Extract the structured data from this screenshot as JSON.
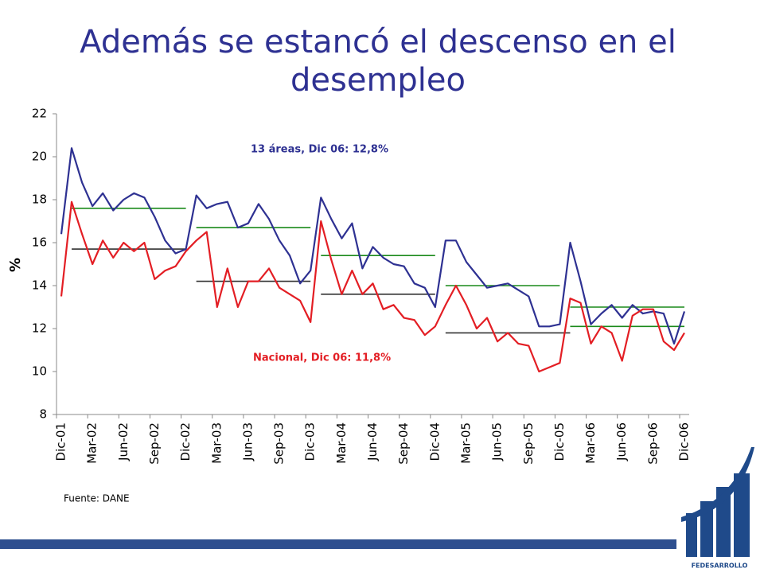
{
  "chart_data": {
    "type": "line",
    "title": "Además se estancó el descenso en el desempleo",
    "y_label": "%",
    "source": "Fuente: DANE",
    "logo": "FEDESARROLLO",
    "categories": [
      "Dic-01",
      null,
      null,
      "Mar-02",
      null,
      null,
      "Jun-02",
      null,
      null,
      "Sep-02",
      null,
      null,
      "Dic-02",
      null,
      null,
      "Mar-03",
      null,
      null,
      "Jun-03",
      null,
      null,
      "Sep-03",
      null,
      null,
      "Dic-03",
      null,
      null,
      "Mar-04",
      null,
      null,
      "Jun-04",
      null,
      null,
      "Sep-04",
      null,
      null,
      "Dic-04",
      null,
      null,
      "Mar-05",
      null,
      null,
      "Jun-05",
      null,
      null,
      "Sep-05",
      null,
      null,
      "Dic-05",
      null,
      null,
      "Mar-06",
      null,
      null,
      "Jun-06",
      null,
      null,
      "Sep-06",
      null,
      null,
      "Dic-06"
    ],
    "series": [
      {
        "name": "13 áreas",
        "color": "#2e3192",
        "values": [
          16.4,
          20.4,
          18.8,
          17.7,
          18.3,
          17.5,
          18.0,
          18.3,
          18.1,
          17.2,
          16.1,
          15.5,
          15.7,
          18.2,
          17.6,
          17.8,
          17.9,
          16.7,
          16.9,
          17.8,
          17.1,
          16.1,
          15.4,
          14.1,
          14.7,
          18.1,
          17.1,
          16.2,
          16.9,
          14.8,
          15.8,
          15.3,
          15.0,
          14.9,
          14.1,
          13.9,
          13.0,
          16.1,
          16.1,
          15.1,
          14.5,
          13.9,
          14.0,
          14.1,
          13.8,
          13.5,
          12.1,
          12.1,
          12.2,
          16.0,
          14.2,
          12.2,
          12.7,
          13.1,
          12.5,
          13.1,
          12.7,
          12.8,
          12.7,
          11.3,
          12.8
        ]
      },
      {
        "name": "Nacional",
        "color": "#e31e24",
        "values": [
          13.5,
          17.9,
          16.4,
          15.0,
          16.1,
          15.3,
          16.0,
          15.6,
          16.0,
          14.3,
          14.7,
          14.9,
          15.6,
          16.1,
          16.5,
          13.0,
          14.8,
          13.0,
          14.2,
          14.2,
          14.8,
          13.9,
          13.6,
          13.3,
          12.3,
          17.0,
          15.2,
          13.6,
          14.7,
          13.6,
          14.1,
          12.9,
          13.1,
          12.5,
          12.4,
          11.7,
          12.1,
          13.1,
          14.0,
          13.1,
          12.0,
          12.5,
          11.4,
          11.8,
          11.3,
          11.2,
          10.0,
          10.2,
          10.4,
          13.4,
          13.2,
          11.3,
          12.1,
          11.8,
          10.5,
          12.6,
          12.9,
          12.9,
          11.4,
          11.0,
          11.8
        ]
      }
    ],
    "segments": [
      {
        "color": "#1a8a1a",
        "from": 1,
        "to": 12,
        "value": 17.6
      },
      {
        "color": "#1a8a1a",
        "from": 13,
        "to": 24,
        "value": 16.7
      },
      {
        "color": "#1a8a1a",
        "from": 25,
        "to": 36,
        "value": 15.4
      },
      {
        "color": "#1a8a1a",
        "from": 37,
        "to": 48,
        "value": 14.0
      },
      {
        "color": "#1a8a1a",
        "from": 49,
        "to": 60,
        "value": 13.0
      },
      {
        "color": "#1a8a1a",
        "from": 49,
        "to": 60,
        "value": 12.1
      },
      {
        "color": "#333333",
        "from": 1,
        "to": 12,
        "value": 15.7
      },
      {
        "color": "#333333",
        "from": 13,
        "to": 24,
        "value": 14.2
      },
      {
        "color": "#333333",
        "from": 25,
        "to": 36,
        "value": 13.6
      },
      {
        "color": "#333333",
        "from": 37,
        "to": 49,
        "value": 11.8
      }
    ],
    "annotations": [
      {
        "text": "13 áreas, Dic 06: 12,8%",
        "color": "#2e3192"
      },
      {
        "text": "Nacional, Dic 06: 11,8%",
        "color": "#e31e24"
      }
    ],
    "ylim": [
      8,
      22
    ],
    "yticks": [
      8,
      10,
      12,
      14,
      16,
      18,
      20,
      22
    ]
  }
}
